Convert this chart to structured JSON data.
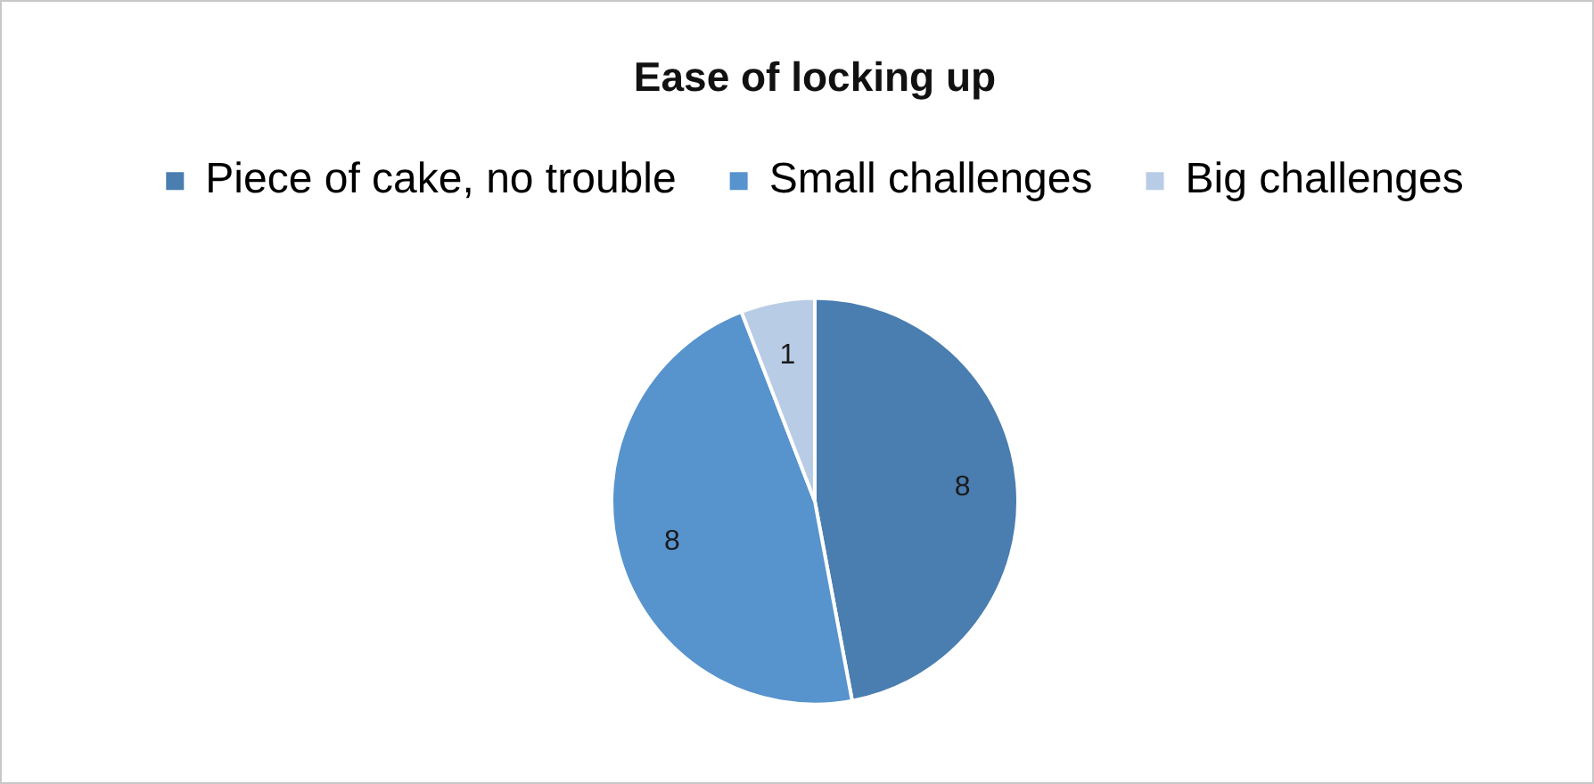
{
  "chart_data": {
    "type": "pie",
    "title": "Ease of locking up",
    "categories": [
      "Piece of cake, no trouble",
      "Small challenges",
      "Big challenges"
    ],
    "values": [
      8,
      8,
      1
    ],
    "colors": [
      "#4a7db0",
      "#5793cd",
      "#b9cce6"
    ],
    "legend": "top",
    "data_labels": true
  }
}
